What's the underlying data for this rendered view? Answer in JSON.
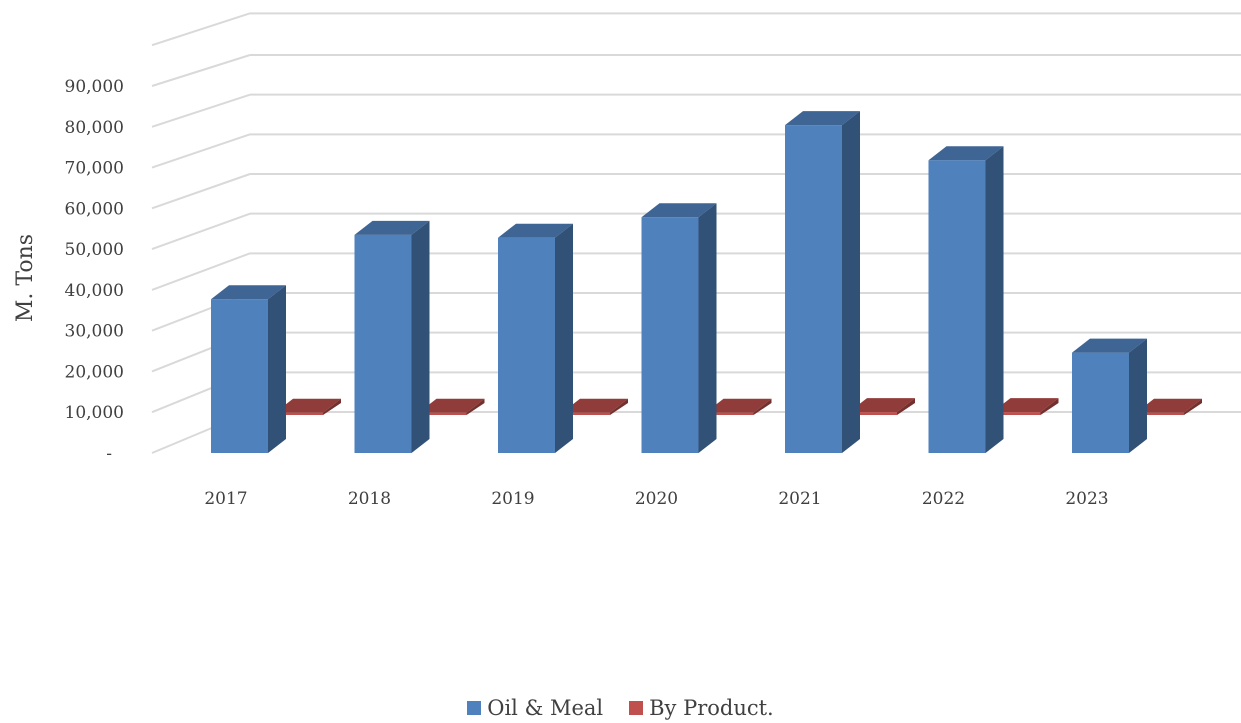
{
  "chart_data": {
    "type": "bar",
    "categories": [
      "2017",
      "2018",
      "2019",
      "2020",
      "2021",
      "2022",
      "2023"
    ],
    "series": [
      {
        "name": "Oil & Meal",
        "values": [
          37700,
          53500,
          52800,
          57800,
          80400,
          71800,
          24600
        ],
        "color": "#4F81BD"
      },
      {
        "name": "By Product.",
        "values": [
          900,
          900,
          900,
          900,
          1200,
          1200,
          900
        ],
        "color": "#C0504D"
      }
    ],
    "y_ticks": [
      "-",
      "10,000",
      "20,000",
      "30,000",
      "40,000",
      "50,000",
      "60,000",
      "70,000",
      "80,000",
      "90,000"
    ],
    "ylabel": "M. Tons",
    "xlabel": "",
    "ylim": [
      0,
      90000
    ],
    "grid": true,
    "legend_position": "bottom"
  }
}
